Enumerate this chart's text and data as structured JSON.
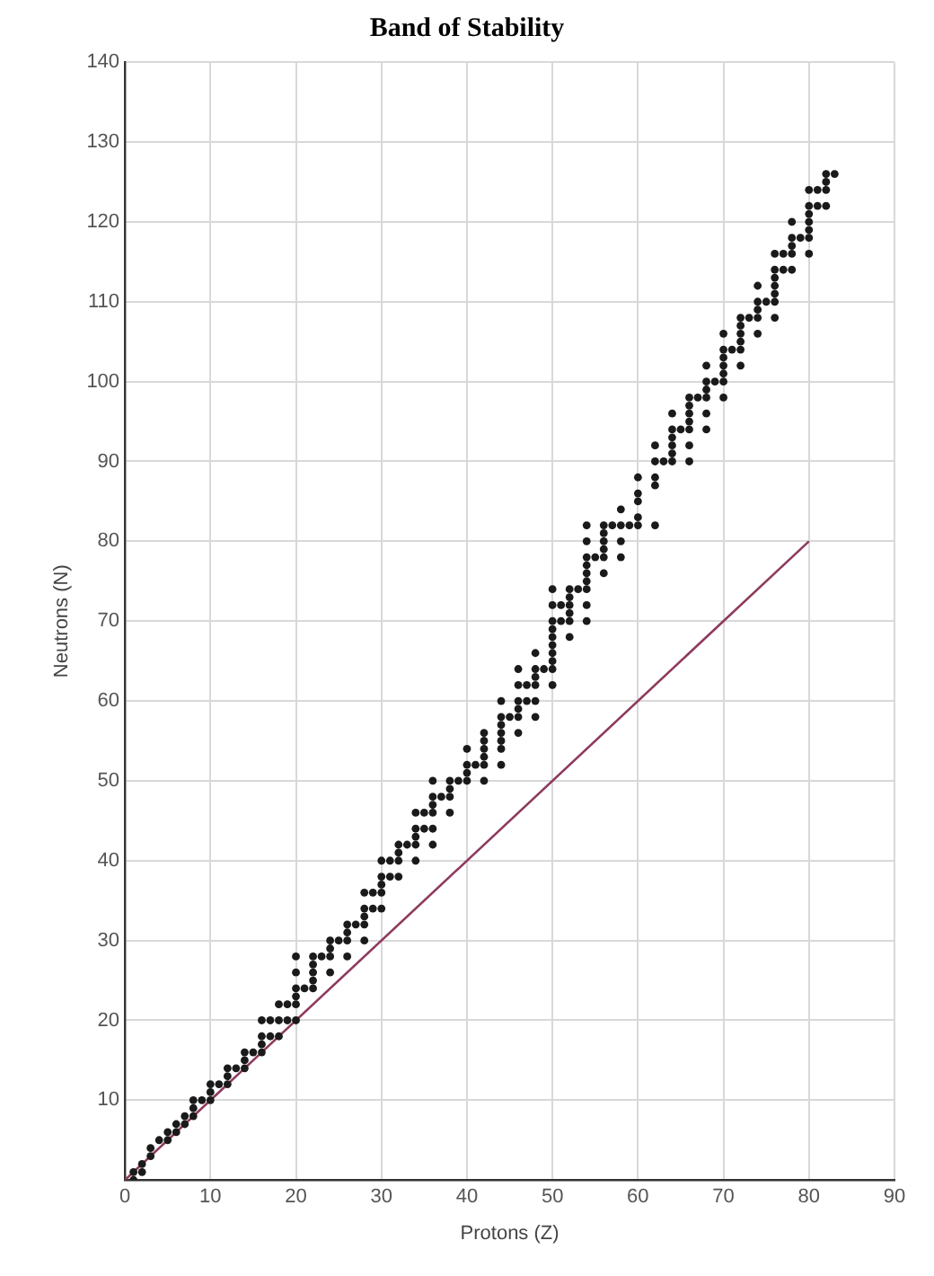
{
  "chart_data": {
    "type": "scatter",
    "title": "Band of Stability",
    "xlabel": "Protons (Z)",
    "ylabel": "Neutrons (N)",
    "xlim": [
      0,
      90
    ],
    "xticks": [
      0,
      10,
      20,
      30,
      40,
      50,
      60,
      70,
      80,
      90
    ],
    "ylim": [
      0,
      140
    ],
    "yticks": [
      {
        "value": 0,
        "label": null
      },
      10,
      20,
      30,
      40,
      50,
      60,
      70,
      80,
      90,
      100,
      110,
      120,
      130,
      140
    ],
    "grid": true,
    "legend": false,
    "series": [
      {
        "marker": "circle",
        "color": "#1a1a1a",
        "x": [
          1,
          1,
          2,
          2,
          3,
          3,
          4,
          5,
          5,
          6,
          6,
          7,
          7,
          8,
          8,
          8,
          9,
          10,
          10,
          10,
          11,
          12,
          12,
          12,
          13,
          14,
          14,
          14,
          15,
          16,
          16,
          16,
          16,
          17,
          17,
          18,
          18,
          18,
          19,
          19,
          20,
          20,
          20,
          20,
          20,
          20,
          21,
          22,
          22,
          22,
          22,
          22,
          23,
          24,
          24,
          24,
          24,
          25,
          26,
          26,
          26,
          26,
          27,
          28,
          28,
          28,
          28,
          28,
          29,
          29,
          30,
          30,
          30,
          30,
          30,
          31,
          31,
          32,
          32,
          32,
          32,
          33,
          34,
          34,
          34,
          34,
          34,
          35,
          35,
          36,
          36,
          36,
          36,
          36,
          36,
          37,
          38,
          38,
          38,
          38,
          39,
          40,
          40,
          40,
          40,
          41,
          42,
          42,
          42,
          42,
          42,
          42,
          44,
          44,
          44,
          44,
          44,
          44,
          44,
          45,
          46,
          46,
          46,
          46,
          46,
          46,
          47,
          47,
          48,
          48,
          48,
          48,
          48,
          48,
          49,
          50,
          50,
          50,
          50,
          50,
          50,
          50,
          50,
          50,
          50,
          51,
          51,
          52,
          52,
          52,
          52,
          52,
          52,
          53,
          54,
          54,
          54,
          54,
          54,
          54,
          54,
          54,
          54,
          55,
          56,
          56,
          56,
          56,
          56,
          56,
          57,
          58,
          58,
          58,
          58,
          59,
          60,
          60,
          60,
          60,
          60,
          62,
          62,
          62,
          62,
          62,
          63,
          64,
          64,
          64,
          64,
          64,
          64,
          65,
          66,
          66,
          66,
          66,
          66,
          66,
          66,
          67,
          68,
          68,
          68,
          68,
          68,
          68,
          69,
          70,
          70,
          70,
          70,
          70,
          70,
          70,
          71,
          72,
          72,
          72,
          72,
          72,
          72,
          73,
          74,
          74,
          74,
          74,
          74,
          75,
          76,
          76,
          76,
          76,
          76,
          76,
          76,
          77,
          77,
          78,
          78,
          78,
          78,
          78,
          79,
          80,
          80,
          80,
          80,
          80,
          80,
          80,
          81,
          81,
          82,
          82,
          82,
          82,
          83
        ],
        "values": [
          0,
          1,
          1,
          2,
          3,
          4,
          5,
          5,
          6,
          6,
          7,
          7,
          8,
          8,
          9,
          10,
          10,
          10,
          11,
          12,
          12,
          12,
          13,
          14,
          14,
          14,
          15,
          16,
          16,
          16,
          17,
          18,
          20,
          18,
          20,
          18,
          20,
          22,
          20,
          22,
          20,
          22,
          23,
          24,
          26,
          28,
          24,
          24,
          25,
          26,
          27,
          28,
          28,
          26,
          28,
          29,
          30,
          30,
          28,
          30,
          31,
          32,
          32,
          30,
          32,
          33,
          34,
          36,
          34,
          36,
          34,
          36,
          37,
          38,
          40,
          38,
          40,
          38,
          40,
          41,
          42,
          42,
          40,
          42,
          43,
          44,
          46,
          44,
          46,
          42,
          44,
          46,
          47,
          48,
          50,
          48,
          46,
          48,
          49,
          50,
          50,
          50,
          51,
          52,
          54,
          52,
          50,
          52,
          53,
          54,
          55,
          56,
          52,
          54,
          55,
          56,
          57,
          58,
          60,
          58,
          56,
          58,
          59,
          60,
          62,
          64,
          60,
          62,
          58,
          60,
          62,
          63,
          64,
          66,
          64,
          62,
          64,
          65,
          66,
          67,
          68,
          69,
          70,
          72,
          74,
          70,
          72,
          68,
          70,
          71,
          72,
          73,
          74,
          74,
          70,
          72,
          74,
          75,
          76,
          77,
          78,
          80,
          82,
          78,
          76,
          78,
          79,
          80,
          81,
          82,
          82,
          78,
          80,
          82,
          84,
          82,
          82,
          83,
          85,
          86,
          88,
          82,
          87,
          88,
          90,
          92,
          90,
          90,
          91,
          92,
          93,
          94,
          96,
          94,
          90,
          92,
          94,
          95,
          96,
          97,
          98,
          98,
          94,
          96,
          98,
          99,
          100,
          102,
          100,
          98,
          100,
          101,
          102,
          103,
          104,
          106,
          104,
          102,
          104,
          105,
          106,
          107,
          108,
          108,
          106,
          108,
          109,
          110,
          112,
          110,
          108,
          110,
          111,
          112,
          113,
          114,
          116,
          114,
          116,
          114,
          116,
          117,
          118,
          120,
          118,
          116,
          118,
          119,
          120,
          121,
          122,
          124,
          122,
          124,
          122,
          124,
          125,
          126,
          126
        ]
      },
      {
        "type": "line",
        "marker": "none",
        "color": "#8e3a5e",
        "x": [
          0,
          80
        ],
        "values": [
          0,
          80
        ]
      }
    ]
  }
}
